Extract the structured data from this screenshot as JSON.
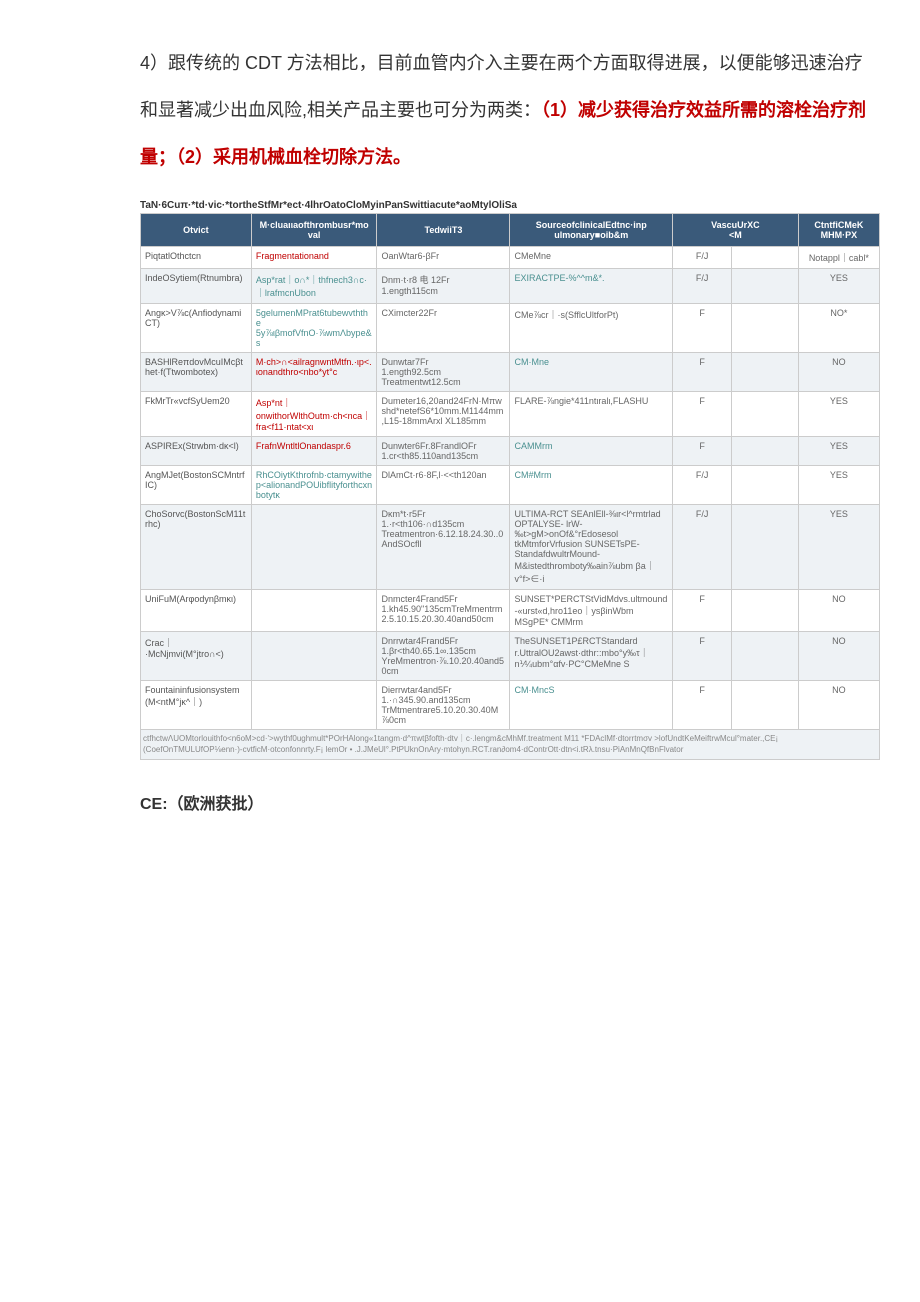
{
  "paragraph": {
    "p1": "4）跟传统的 CDT 方法相比，目前血管内介入主要在两个方面取得进展，以便能够迅速治疗和显著减少出血风险,相关产品主要也可分为两类：",
    "p2_red": "（1）减少获得治疗效益所需的溶栓治疗剂量；（2）采用机械血栓切除方法。"
  },
  "table_caption": "TaN·6Cuπ·*td·vic·*tortheStfMr*ect·4lhrOatoCloMyinPanSwittiacute*aoMtylOliSa",
  "headers": {
    "h1": "Otvict",
    "h2_a": "M·cluaιιaofthrombusr*mo",
    "h2_b": "val",
    "h3": "TedwiiT3",
    "h4_a": "SourceofclinicalEdtnc·inp",
    "h4_b": "ulmonary■oib&m",
    "h5": "VascuUrXC",
    "h5_b": "<M",
    "h6_a": "CtntfiCMeK",
    "h6_b": "MHM·PX"
  },
  "rows": [
    {
      "c1": "PiqtatlOthctcn",
      "c2": "Fragmentationand",
      "c2_class": "red-text",
      "c3": "OanWtar6-βFr",
      "c4": "CMeMne",
      "c5": "F/J",
      "c6": "",
      "c7": "Notappl｜cabl*"
    },
    {
      "c1": "IndeOSytiem(Rtnumbra)",
      "c2": "Asp*rat｜o∩*｜thfnech3∩c·｜lrafmcnUbon",
      "c2_class": "teal-text",
      "c3": "Dnm·t·r8 电 12Fr\n1.ength115cm",
      "c4": "EXIRACTPE-%^^m&*.",
      "c4_class": "teal-text",
      "c5": "F/J",
      "c6": "",
      "c7": "YES"
    },
    {
      "c1": "Angκ>V⅞c(Anfiodynami CT)",
      "c2": "5gelumenMPrat6tubewvththe 5y⅞ιβmofVfnO·⅞wmΛbype&s",
      "c2_class": "teal-text",
      "c3": "CXimcter22Fr",
      "c4": "CMe⅞cr｜·s(SfflcUltforPt)",
      "c5": "F",
      "c6": "",
      "c7": "NO*"
    },
    {
      "c1": "BASHlReπdovMcuIMcβthet·f(Ttwombotex)",
      "c2": "M·ch>∩<ailragnwntMtfn.·ιp<.ιonandthro<nbo*yt°c",
      "c2_class": "red-text",
      "c3": "Dunwtar7Fr\n1.ength92.5cm\nTreatmentwt12.5cm",
      "c4": "CM·Mne",
      "c4_class": "teal-text",
      "c5": "F",
      "c6": "",
      "c7": "NO"
    },
    {
      "c1": "FkMrTr«vcfSyUem20",
      "c2": "Asp*nt｜onwithorWlthOutm·ch<nca｜fra<f11·ntat<xι",
      "c2_class": "red-text",
      "c3": "Dumeter16,20and24FrN·Mπw shd*netefS6*10mm.M1144mm,L15-18mmArxl XL185mm",
      "c4": "FLARE-⅞ngie*411ntιralι,FLASHU",
      "c5": "F",
      "c6": "",
      "c7": "YES"
    },
    {
      "c1": "ASPIREx(Strwbm·dκ<l)",
      "c2": "FrafnWntltlOnandaspr.6",
      "c2_class": "red-text",
      "c3": "Dunwter6Fr.8FrandlOFr\n1.cr<th85.110and135cm",
      "c4": "CAMMrm",
      "c4_class": "teal-text",
      "c5": "F",
      "c6": "",
      "c7": "YES"
    },
    {
      "c1": "AngMJet(BostonSCMntrfIC)",
      "c2": "RhCOiytKthrofnb·ctamywithe p<alionandPOUibflityforthcxnbotytκ",
      "c2_class": "teal-text",
      "c3": "DlAmCt·r6·8F,l·<<th120an",
      "c4": "CM#Mrm",
      "c4_class": "teal-text",
      "c5": "F/J",
      "c6": "",
      "c7": "YES"
    },
    {
      "c1": "ChoSorvc(BostonScM11trhc)",
      "c2": "",
      "c3": "Dκm*t·r5Fr\n1.·r<th106·∩d135cm\nTreatmentron·6.12.18.24.30..0AndSOcfll",
      "c4": "ULTIMA-RCT SEAnlEll-⅜ιr<l^rmtrlad OPTALYSE- lrW-‰t>gM>onOf&°rEdosesol tkMtmforVrfusion SUNSETsPE-StandafdwultrMound-M&istedthromboty‰ain⅞ubm βa｜v°f>∈·i",
      "c5": "F/J",
      "c6": "",
      "c7": "YES"
    },
    {
      "c1": "UniFuM(Arφodynβmκι)",
      "c2": "",
      "c3": "Dnmcter4Frand5Fr\n1.kh45.90\"135cmTreMmentrm2.5.10.15.20.30.40and50cm",
      "c4": "SUNSET*PERCTStVidMdvs.ultmound-«urst«d,hro11eo｜ysβinWbm MSgPE* CMMrm",
      "c5": "F",
      "c6": "",
      "c7": "NO"
    },
    {
      "c1": "Crac｜·McNjmvi(M°jtro∩<)",
      "c2": "",
      "c3": "Dnrrwtar4Frand5Fr\n1.βr<th40.65.1∞.135cm YreMmentron·⅞.10.20.40and50cm",
      "c4": "TheSUNSET1P£RCTStandard r.UttralOU2awst·dthr::mbo°y‰τ｜n⅟¼ubm°αfv·PC°CMeMne S",
      "c5": "F",
      "c6": "",
      "c7": "NO"
    },
    {
      "c1": "Fountaininfusionsystem (M<ntM°jκ^｜)",
      "c2": "",
      "c3": "Dierrwtar4and5Fr\n1.·∩345.90.and135cm TrMtmentrare5.10.20.30.40M⅞0cm",
      "c4": "CM·MncS",
      "c4_class": "teal-text",
      "c5": "F",
      "c6": "",
      "c7": "NO"
    }
  ],
  "footnote": "ctfhctwΛUOMtorlouithfo<n6oM>cd·'>wythf0ughmult*POrHAlong«1tangm·d^πwtβfofth·dtv｜c·.lengm&cMhMf.treatment M11 *FDAclMf·dtorrtmσv >lofUndtKeMeiftrwMcul°mater.,CE¡ (CoefOnTMULUfOP⅛enn·)-cvtficM·otconfonnrty.F¡ lemOr • .J.JMeUl°.PtPUknOnAry·mtohyn.RCT.ran∂om4·dContrOtt·dtn<i.tRλ.tnsu·PiAnMnQfBnFlvator",
  "section_heading": "CE:（欧洲获批）"
}
